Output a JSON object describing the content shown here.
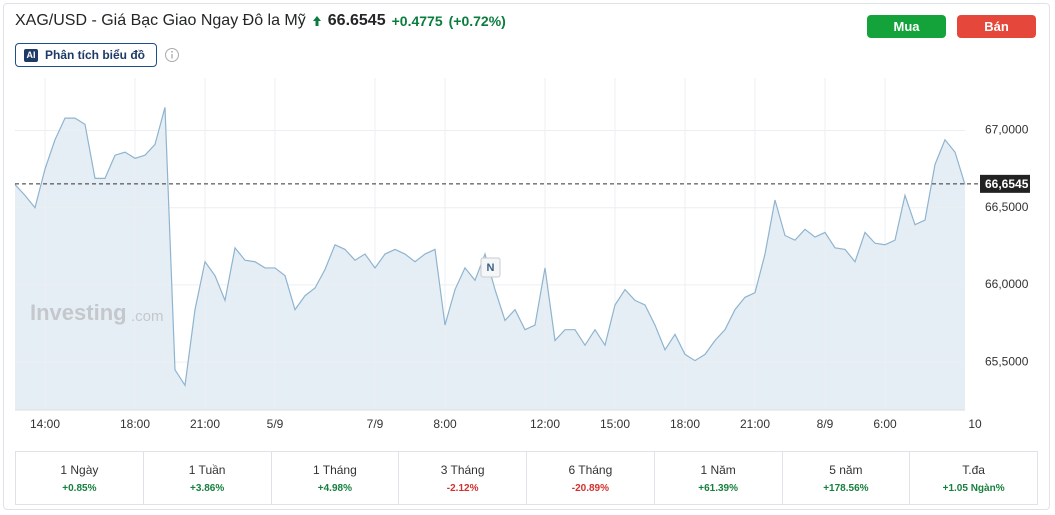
{
  "header": {
    "title": "XAG/USD - Giá Bạc Giao Ngay Đô la Mỹ",
    "price": "66.6545",
    "change": "+0.4775",
    "change_pct": "(+0.72%)"
  },
  "buttons": {
    "buy": "Mua",
    "sell": "Bán"
  },
  "ai_button": {
    "badge": "AI",
    "label": "Phân tích biểu đồ"
  },
  "chart_data": {
    "type": "line",
    "categories": [
      null,
      null,
      null,
      "14:00",
      null,
      null,
      null,
      null,
      null,
      null,
      null,
      null,
      "18:00",
      null,
      null,
      null,
      null,
      null,
      null,
      "21:00",
      null,
      null,
      null,
      null,
      null,
      null,
      "5/9",
      null,
      null,
      null,
      null,
      null,
      null,
      null,
      null,
      null,
      "7/9",
      null,
      null,
      null,
      null,
      null,
      null,
      "8:00",
      null,
      null,
      null,
      null,
      null,
      null,
      null,
      null,
      null,
      "12:00",
      null,
      null,
      null,
      null,
      null,
      null,
      "15:00",
      null,
      null,
      null,
      null,
      null,
      null,
      "18:00",
      null,
      null,
      null,
      null,
      null,
      null,
      "21:00",
      null,
      null,
      null,
      null,
      null,
      null,
      "8/9",
      null,
      null,
      null,
      null,
      null,
      "6:00",
      null,
      null,
      null,
      null,
      null,
      null,
      null,
      null,
      "10"
    ],
    "values": [
      66.65,
      66.58,
      66.5,
      66.75,
      66.94,
      67.08,
      67.08,
      67.04,
      66.69,
      66.69,
      66.84,
      66.86,
      66.82,
      66.84,
      66.91,
      67.15,
      65.45,
      65.35,
      65.84,
      66.15,
      66.06,
      65.9,
      66.24,
      66.16,
      66.15,
      66.11,
      66.11,
      66.06,
      65.84,
      65.93,
      65.98,
      66.1,
      66.26,
      66.23,
      66.16,
      66.2,
      66.11,
      66.2,
      66.23,
      66.2,
      66.15,
      66.2,
      66.23,
      65.74,
      65.97,
      66.11,
      66.03,
      66.2,
      65.97,
      65.77,
      65.84,
      65.71,
      65.74,
      66.11,
      65.64,
      65.71,
      65.71,
      65.61,
      65.71,
      65.61,
      65.87,
      65.97,
      65.9,
      65.87,
      65.74,
      65.58,
      65.68,
      65.55,
      65.51,
      65.55,
      65.64,
      65.71,
      65.84,
      65.92,
      65.95,
      66.2,
      66.55,
      66.32,
      66.29,
      66.36,
      66.31,
      66.34,
      66.24,
      66.23,
      66.15,
      66.34,
      66.27,
      66.26,
      66.29,
      66.58,
      66.39,
      66.42,
      66.78,
      66.94,
      66.86,
      66.65,
      null
    ],
    "color": "#8fb4cf",
    "fill_color": "#e6eef5",
    "ylim": [
      65.19,
      67.34
    ],
    "yticks": [
      {
        "value": 65.5,
        "label": "65,5000"
      },
      {
        "value": 66,
        "label": "66,0000"
      },
      {
        "value": 66.5,
        "label": "66,5000"
      },
      {
        "value": 67,
        "label": "67,0000"
      }
    ],
    "grid": true,
    "last_price": {
      "value": 66.6545,
      "label": "66,6545"
    },
    "annotation": "N",
    "watermark": {
      "brand": "Investing",
      "suffix": ".com"
    }
  },
  "periods": [
    {
      "label": "1 Ngày",
      "change": "+0.85%",
      "color": "#17803d"
    },
    {
      "label": "1 Tuần",
      "change": "+3.86%",
      "color": "#17803d"
    },
    {
      "label": "1 Tháng",
      "change": "+4.98%",
      "color": "#17803d"
    },
    {
      "label": "3 Tháng",
      "change": "-2.12%",
      "color": "#d0312d"
    },
    {
      "label": "6 Tháng",
      "change": "-20.89%",
      "color": "#d0312d"
    },
    {
      "label": "1 Năm",
      "change": "+61.39%",
      "color": "#17803d"
    },
    {
      "label": "5 năm",
      "change": "+178.56%",
      "color": "#17803d"
    },
    {
      "label": "T.đa",
      "change": "+1.05 Ngàn%",
      "color": "#17803d"
    }
  ]
}
